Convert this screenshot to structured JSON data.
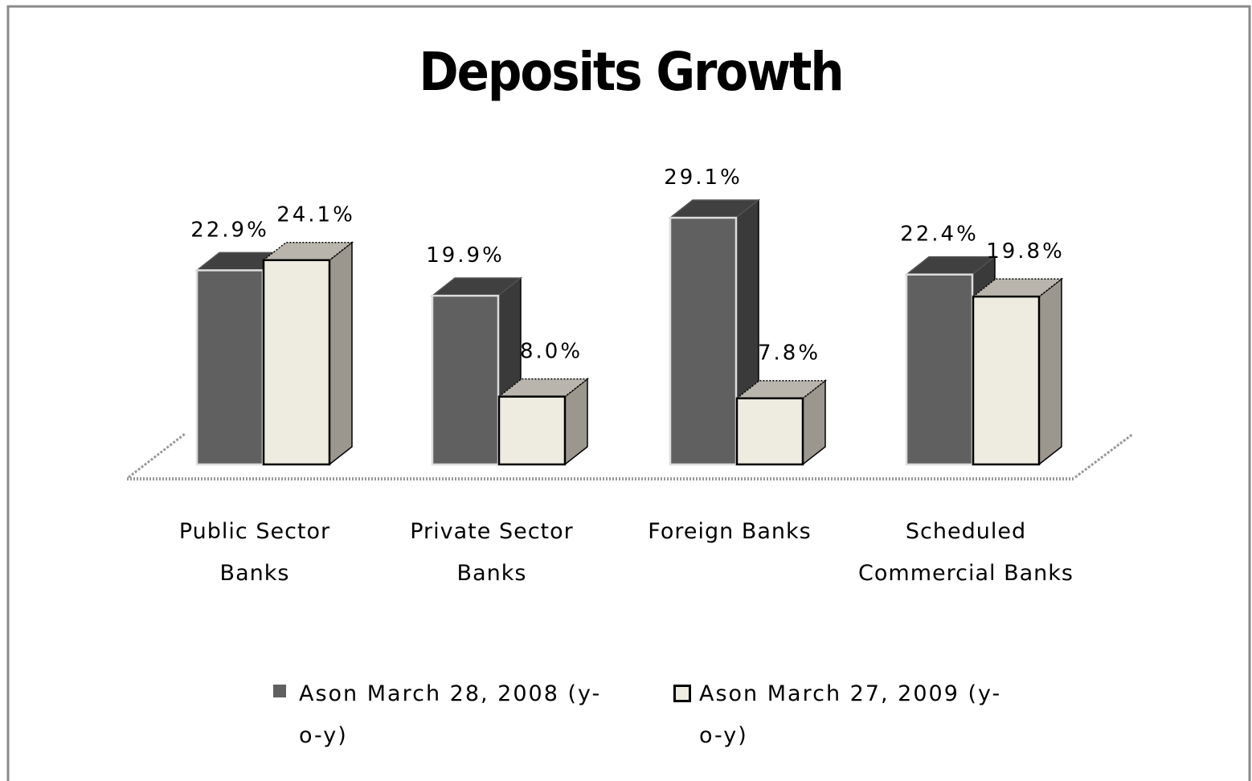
{
  "chart_data": {
    "type": "bar3d",
    "title": "Deposits Growth",
    "categories": [
      "Public Sector Banks",
      "Private Sector Banks",
      "Foreign Banks",
      "Scheduled Commercial Banks"
    ],
    "series": [
      {
        "name": "Ason March 28, 2008 (y-o-y)",
        "color": "#606060",
        "values": [
          22.9,
          19.9,
          29.1,
          22.4
        ],
        "value_labels": [
          "22.9%",
          "19.9%",
          "29.1%",
          "22.4%"
        ]
      },
      {
        "name": "Ason March 27, 2009 (y-o-y)",
        "color": "#eeebe0",
        "values": [
          24.1,
          8.0,
          7.8,
          19.8
        ],
        "value_labels": [
          "24.1%",
          "8.0%",
          "7.8%",
          "19.8%"
        ]
      }
    ]
  }
}
